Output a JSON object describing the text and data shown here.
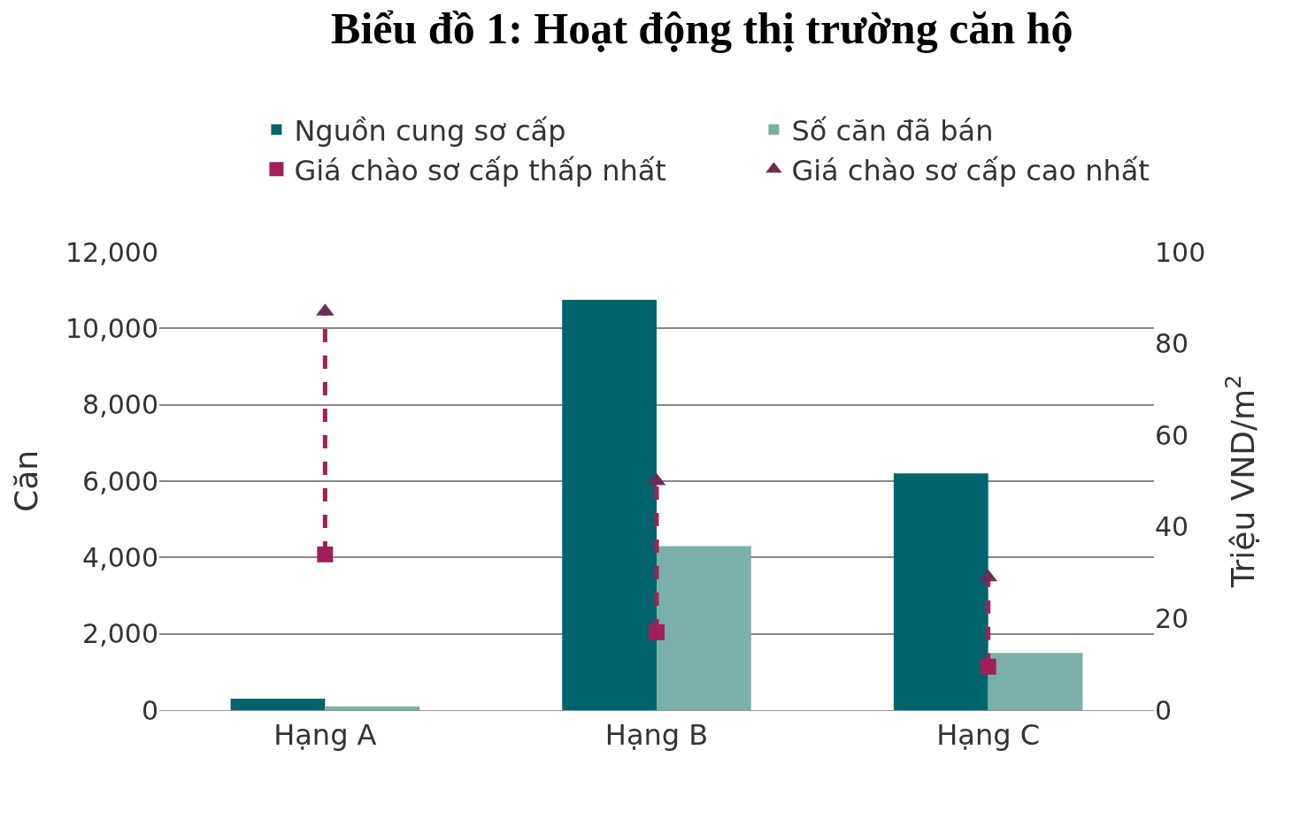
{
  "chart_data": {
    "type": "bar",
    "title": "Biểu đồ 1: Hoạt động thị trường căn hộ",
    "ylabel": "Căn",
    "y2label": "Triệu VND/m$^{2}$",
    "categories": [
      "Hạng A",
      "Hạng B",
      "Hạng C"
    ],
    "series": [
      {
        "name": "Nguồn cung sơ cấp",
        "color": "#00646e",
        "values": [
          300,
          10750,
          6200
        ]
      },
      {
        "name": "Số căn đã bán",
        "color": "#7ab0a8",
        "values": [
          100,
          4300,
          1500
        ]
      },
      {
        "name": "Giá chào sơ cấp thấp nhất",
        "color": "#a0205a",
        "type": "scatter",
        "axis": "y2",
        "marker": "square",
        "line_style": "dashed",
        "values": [
          34,
          17,
          9.5
        ]
      },
      {
        "name": "Giá chào sơ cấp cao nhất",
        "color": "#6b2c55",
        "type": "scatter",
        "axis": "y2",
        "marker": "triangle",
        "values": [
          87,
          50,
          29
        ]
      }
    ],
    "ylim": [
      0,
      12000
    ],
    "yticks": [
      0,
      {
        "value": 2000,
        "label": "2,000"
      },
      {
        "value": 4000,
        "label": "4,000"
      },
      {
        "value": 6000,
        "label": "6,000"
      },
      {
        "value": 8000,
        "label": "8,000"
      },
      {
        "value": 10000,
        "label": "10,000"
      },
      {
        "value": 12000,
        "label": "12,000"
      }
    ],
    "y2lim": [
      0,
      100
    ],
    "y2ticks": [
      0,
      20,
      40,
      60,
      80,
      100
    ],
    "grid": "y",
    "legend": "top"
  }
}
